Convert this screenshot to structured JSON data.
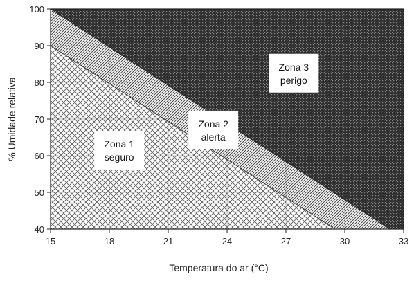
{
  "chart_data": {
    "type": "area",
    "xlabel": "Temperatura do ar (°C)",
    "ylabel": "% Umidade relativa",
    "xlim": [
      15,
      33
    ],
    "ylim": [
      40,
      100
    ],
    "x_ticks": [
      15,
      18,
      21,
      24,
      27,
      30,
      33
    ],
    "y_ticks": [
      40,
      50,
      60,
      70,
      80,
      90,
      100
    ],
    "boundaries": [
      {
        "points": [
          [
            15,
            90
          ],
          [
            29.5,
            40
          ]
        ]
      },
      {
        "points": [
          [
            15,
            100
          ],
          [
            32.3,
            40
          ]
        ]
      }
    ],
    "zones": [
      {
        "name": "Zona 1",
        "label_line1": "Zona 1",
        "label_line2": "seguro",
        "pattern": "crosshatch",
        "color": "#222222",
        "label_at": [
          18.5,
          61.5
        ]
      },
      {
        "name": "Zona 2",
        "label_line1": "Zona 2",
        "label_line2": "alerta",
        "pattern": "diagonal",
        "color": "#333333",
        "label_at": [
          23.3,
          67
        ]
      },
      {
        "name": "Zona 3",
        "label_line1": "Zona 3",
        "label_line2": "perigo",
        "pattern": "dense-dots",
        "color": "#333333",
        "label_at": [
          27.4,
          82.5
        ]
      }
    ],
    "grid": true
  }
}
